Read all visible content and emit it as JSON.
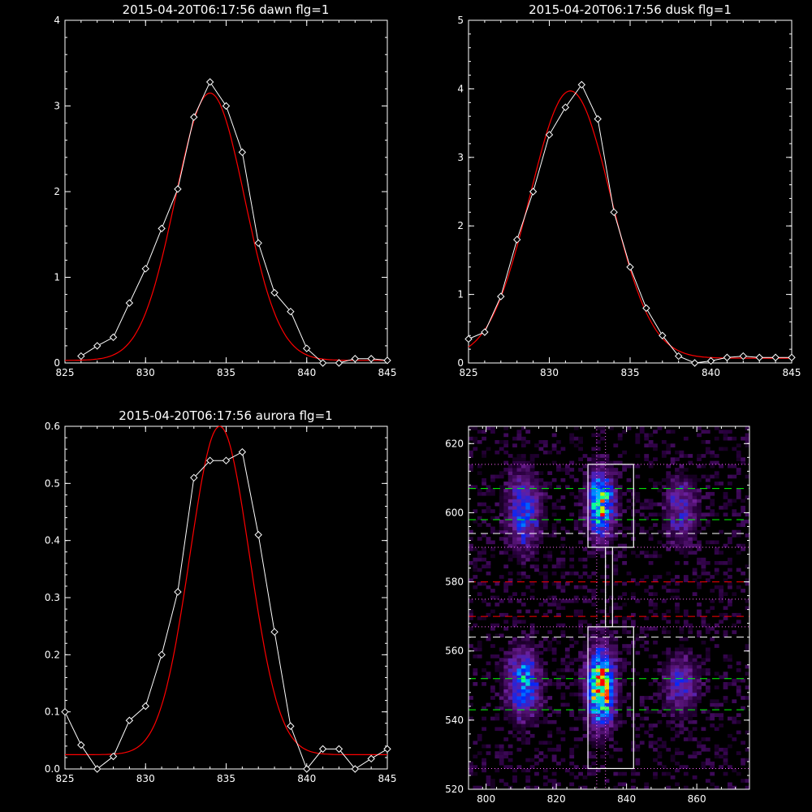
{
  "chart_data": [
    {
      "type": "line",
      "title": "2015-04-20T06:17:56 dawn flg=1",
      "xlim": [
        825,
        845
      ],
      "ylim": [
        0,
        4
      ],
      "xticks": [
        "825",
        "830",
        "835",
        "840",
        "845"
      ],
      "yticks": [
        "0",
        "1",
        "2",
        "3",
        "4"
      ],
      "series": [
        {
          "color": "#ffffff",
          "marker": "diamond",
          "x": [
            826,
            827,
            828,
            829,
            830,
            831,
            832,
            833,
            834,
            835,
            836,
            837,
            838,
            839,
            840,
            841,
            842,
            843,
            844,
            845
          ],
          "y": [
            0.08,
            0.2,
            0.3,
            0.7,
            1.1,
            1.57,
            2.03,
            2.87,
            3.28,
            3.0,
            2.46,
            1.4,
            0.82,
            0.6,
            0.17,
            0.0,
            0.0,
            0.05,
            0.05,
            0.03
          ]
        },
        {
          "color": "#ff0000",
          "marker": "none",
          "gauss": {
            "amp": 3.12,
            "mu": 834.0,
            "sigma": 2.15,
            "base": 0.03
          }
        }
      ]
    },
    {
      "type": "line",
      "title": "2015-04-20T06:17:56 dusk flg=1",
      "xlim": [
        825,
        845
      ],
      "ylim": [
        0,
        5
      ],
      "xticks": [
        "825",
        "830",
        "835",
        "840",
        "845"
      ],
      "yticks": [
        "0",
        "1",
        "2",
        "3",
        "4",
        "5"
      ],
      "series": [
        {
          "color": "#ffffff",
          "marker": "diamond",
          "x": [
            825,
            826,
            827,
            828,
            829,
            830,
            831,
            832,
            833,
            834,
            835,
            836,
            837,
            838,
            839,
            840,
            841,
            842,
            843,
            844,
            845
          ],
          "y": [
            0.35,
            0.45,
            0.97,
            1.8,
            2.5,
            3.33,
            3.73,
            4.06,
            3.56,
            2.2,
            1.4,
            0.8,
            0.4,
            0.1,
            0.0,
            0.03,
            0.08,
            0.1,
            0.08,
            0.08,
            0.08
          ]
        },
        {
          "color": "#ff0000",
          "marker": "none",
          "gauss": {
            "amp": 3.9,
            "mu": 831.3,
            "sigma": 2.5,
            "base": 0.07
          }
        }
      ]
    },
    {
      "type": "line",
      "title": "2015-04-20T06:17:56 aurora flg=1",
      "xlim": [
        825,
        845
      ],
      "ylim": [
        0,
        0.6
      ],
      "xticks": [
        "825",
        "830",
        "835",
        "840",
        "845"
      ],
      "yticks": [
        "0.0",
        "0.1",
        "0.2",
        "0.3",
        "0.4",
        "0.5",
        "0.6"
      ],
      "series": [
        {
          "color": "#ffffff",
          "marker": "diamond",
          "x": [
            825,
            826,
            827,
            828,
            829,
            830,
            831,
            832,
            833,
            834,
            835,
            836,
            837,
            838,
            839,
            840,
            841,
            842,
            843,
            844,
            845
          ],
          "y": [
            0.1,
            0.042,
            0.0,
            0.022,
            0.085,
            0.11,
            0.2,
            0.31,
            0.51,
            0.54,
            0.54,
            0.555,
            0.41,
            0.24,
            0.075,
            0.0,
            0.035,
            0.035,
            0.0,
            0.018,
            0.035
          ]
        },
        {
          "color": "#ff0000",
          "marker": "none",
          "gauss": {
            "amp": 0.575,
            "mu": 834.6,
            "sigma": 1.85,
            "base": 0.025
          }
        }
      ]
    },
    {
      "type": "heatmap",
      "title": "",
      "xlim": [
        795,
        875
      ],
      "ylim": [
        520,
        625
      ],
      "xticks": [
        "800",
        "820",
        "840",
        "860"
      ],
      "yticks": [
        "520",
        "540",
        "560",
        "580",
        "600",
        "620"
      ],
      "blobs": [
        {
          "x": 810,
          "y": 600,
          "sx": 3,
          "sy": 7,
          "amp": 0.45
        },
        {
          "x": 832,
          "y": 602,
          "sx": 2.5,
          "sy": 6,
          "amp": 0.75
        },
        {
          "x": 855,
          "y": 600,
          "sx": 3,
          "sy": 6,
          "amp": 0.3
        },
        {
          "x": 810,
          "y": 550,
          "sx": 3,
          "sy": 6,
          "amp": 0.55
        },
        {
          "x": 832,
          "y": 549,
          "sx": 2.5,
          "sy": 7,
          "amp": 1.0
        },
        {
          "x": 855,
          "y": 550,
          "sx": 3,
          "sy": 5,
          "amp": 0.35
        }
      ],
      "boxes": [
        {
          "x": [
            829,
            842
          ],
          "y": [
            590,
            614
          ],
          "color": "#ffffff"
        },
        {
          "x": [
            829,
            842
          ],
          "y": [
            526,
            567
          ],
          "color": "#ffffff"
        },
        {
          "x": [
            834,
            836
          ],
          "y": [
            567,
            590
          ],
          "color": "#ffffff"
        }
      ],
      "hlines": [
        {
          "y": 614,
          "color": "#ff66ff",
          "style": "dotted"
        },
        {
          "y": 590,
          "color": "#ff66ff",
          "style": "dotted"
        },
        {
          "y": 567,
          "color": "#ff66ff",
          "style": "dotted"
        },
        {
          "y": 575,
          "color": "#ff66ff",
          "style": "dotted"
        },
        {
          "y": 526,
          "color": "#ff66ff",
          "style": "dotted"
        },
        {
          "y": 607,
          "color": "#00ff00",
          "style": "dashed"
        },
        {
          "y": 598,
          "color": "#00ff00",
          "style": "dashed"
        },
        {
          "y": 552,
          "color": "#00ff00",
          "style": "dashed"
        },
        {
          "y": 543,
          "color": "#00ff00",
          "style": "dashed"
        },
        {
          "y": 594,
          "color": "#ffffff",
          "style": "dashed"
        },
        {
          "y": 564,
          "color": "#ffffff",
          "style": "dashed"
        },
        {
          "y": 580,
          "color": "#ff0000",
          "style": "dashed"
        },
        {
          "y": 570,
          "color": "#ff0000",
          "style": "dashed"
        }
      ],
      "vlines": [
        {
          "x": 831.5,
          "color": "#ff66ff",
          "style": "dotted"
        },
        {
          "x": 834,
          "color": "#ff66ff",
          "style": "dotted"
        }
      ]
    }
  ]
}
